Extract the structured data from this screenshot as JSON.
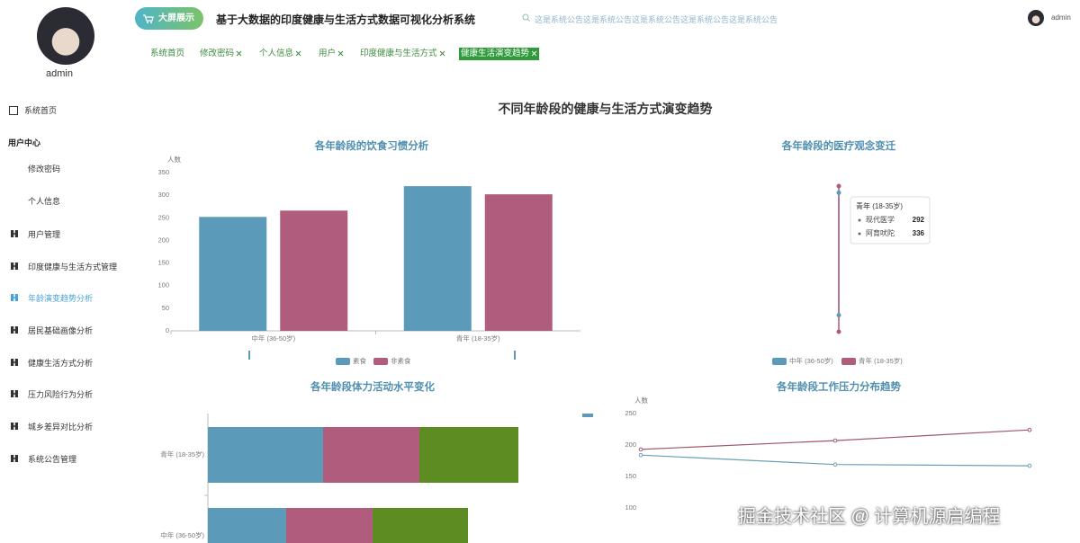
{
  "sidebar": {
    "user": "admin",
    "items": [
      "系统首页",
      "用户中心",
      "修改密码",
      "个人信息",
      "用户管理",
      "印度健康与生活方式管理",
      "年龄演变趋势分析",
      "居民基础画像分析",
      "健康生活方式分析",
      "压力风险行为分析",
      "城乡差异对比分析",
      "系统公告管理"
    ],
    "active_item": 6
  },
  "header": {
    "screen_button": "大屏展示",
    "title": "基于大数据的印度健康与生活方式数据可视化分析系统",
    "notice": "这是系统公告这是系统公告这是系统公告这是系统公告这是系统公告",
    "user": "admin"
  },
  "tabs": {
    "items": [
      "系统首页",
      "修改密码",
      "个人信息",
      "用户",
      "印度健康与生活方式",
      "健康生活演变趋势"
    ],
    "active_tab": 5
  },
  "page_title": "不同年龄段的健康与生活方式演变趋势",
  "chart_data": [
    {
      "type": "bar",
      "title": "各年龄段的饮食习惯分析",
      "y_label": "人数",
      "categories": [
        "中年 (36-50岁)",
        "青年 (18-35岁)"
      ],
      "series": [
        {
          "name": "素食",
          "color": "#5b9ab8",
          "values": [
            252,
            320
          ]
        },
        {
          "name": "非素食",
          "color": "#b05c7c",
          "values": [
            266,
            302
          ]
        }
      ],
      "ylim": [
        0,
        350
      ],
      "yticks": [
        0,
        50,
        100,
        150,
        200,
        250,
        300,
        350
      ]
    },
    {
      "type": "point",
      "title": "各年龄段的医疗观念变迁",
      "categories": [
        "现代医学",
        "阿育吠陀"
      ],
      "series": [
        {
          "name": "中年 (36-50岁)",
          "color": "#5b9ab8",
          "values": [
            297,
            334
          ]
        },
        {
          "name": "青年 (18-35岁)",
          "color": "#b05c7c",
          "values": [
            292,
            336
          ]
        }
      ],
      "tooltip_series": 1
    },
    {
      "type": "bar",
      "orientation": "horizontal",
      "stacked": true,
      "title": "各年龄段体力活动水平变化",
      "categories": [
        "青年 (18-35岁)",
        "中年 (36-50岁)"
      ],
      "series": [
        {
          "color": "#5b9ab8",
          "values": [
            128,
            87
          ]
        },
        {
          "color": "#b05c7c",
          "values": [
            107,
            96
          ]
        },
        {
          "color": "#5d8c22",
          "values": [
            110,
            106
          ]
        }
      ]
    },
    {
      "type": "line",
      "title": "各年龄段工作压力分布趋势",
      "y_label": "人数",
      "categories": [
        null,
        null,
        null
      ],
      "series": [
        {
          "color": "#a0566e",
          "values": [
            193,
            207,
            224
          ]
        },
        {
          "color": "#6a9fb5",
          "values": [
            184,
            169,
            167
          ]
        }
      ],
      "ylim": [
        100,
        250
      ],
      "yticks": [
        100,
        150,
        200,
        250
      ]
    }
  ],
  "watermark": "掘金技术社区 @ 计算机源启编程"
}
